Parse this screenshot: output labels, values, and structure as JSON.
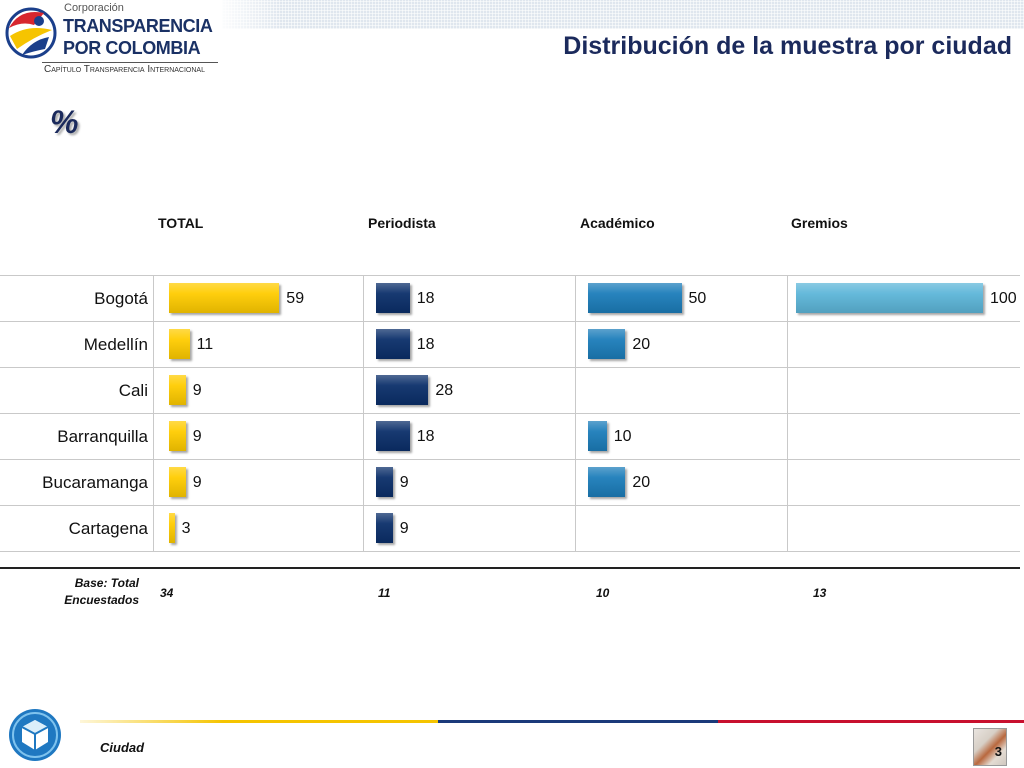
{
  "logo": {
    "kicker": "Corporación",
    "name_line1": "TRANSPARENCIA",
    "name_line2": "POR COLOMBIA",
    "tagline": "Capítulo Transparencia Internacional"
  },
  "slide": {
    "title": "Distribución de la muestra por ciudad",
    "footer_label": "Ciudad",
    "page_number": "3"
  },
  "icons": {
    "header_logo": "transparencia-emblem-icon",
    "footer_logo": "cube-emblem-icon"
  },
  "colors": {
    "title": "#1B2A5C",
    "grid": "#C9C9C9",
    "footer_yellow": "#F5C400",
    "footer_navy": "#1B3A7A",
    "footer_red": "#C8102E"
  },
  "chart_data": {
    "type": "bar",
    "orientation": "horizontal",
    "unit": "%",
    "categories": [
      "Bogotá",
      "Medellín",
      "Cali",
      "Barranquilla",
      "Bucaramanga",
      "Cartagena"
    ],
    "series": [
      {
        "name": "TOTAL",
        "values": [
          59,
          11,
          9,
          9,
          9,
          3
        ],
        "color": "#FFCC00"
      },
      {
        "name": "Periodista",
        "values": [
          18,
          18,
          28,
          18,
          9,
          9
        ],
        "color": "#0B2F6A"
      },
      {
        "name": "Académico",
        "values": [
          50,
          20,
          null,
          10,
          20,
          null
        ],
        "color": "#1C7DBA"
      },
      {
        "name": "Gremios",
        "values": [
          100,
          null,
          null,
          null,
          null,
          null
        ],
        "color": "#5DB6D9"
      }
    ],
    "base_label": "Base: Total Encuestados",
    "base_values": [
      34,
      11,
      10,
      13
    ],
    "xlim": [
      0,
      100
    ],
    "grid": true,
    "legend": "none"
  }
}
